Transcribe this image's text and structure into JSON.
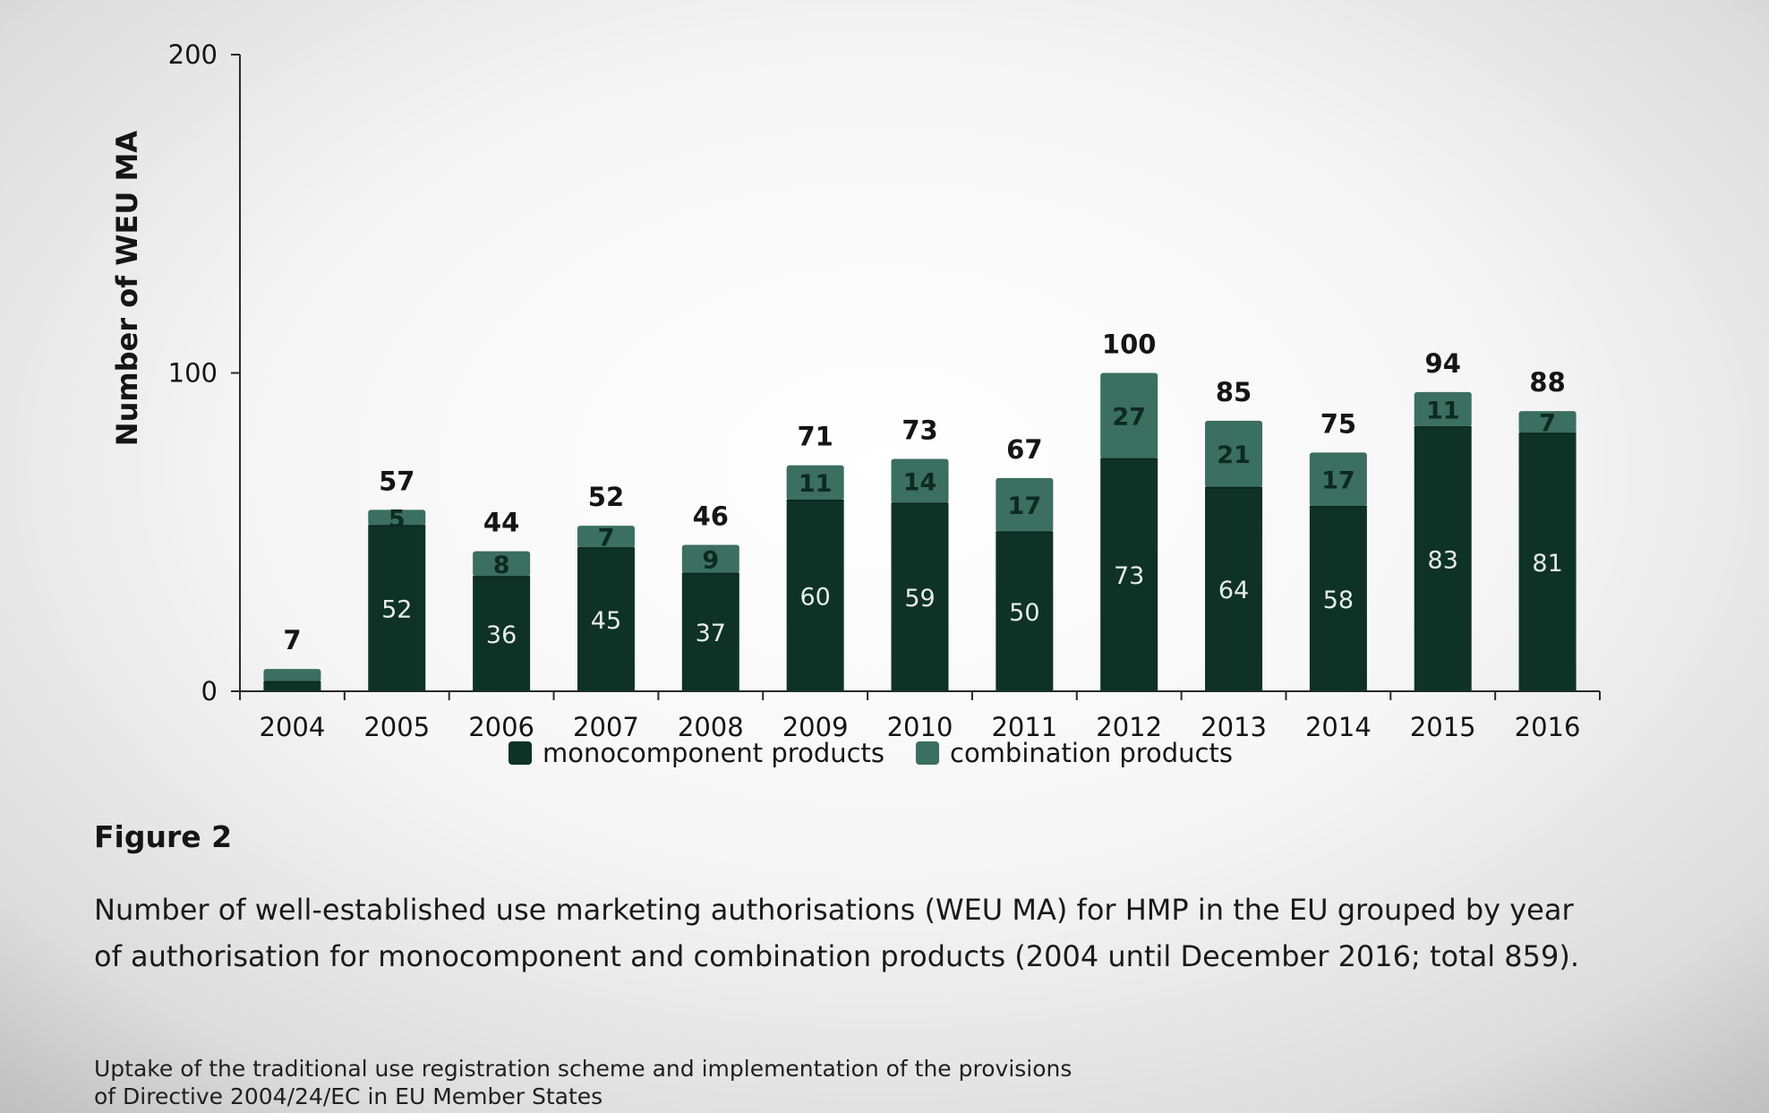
{
  "chart_data": {
    "type": "bar",
    "stacked": true,
    "ylabel": "Number of WEU MA",
    "ylim": [
      0,
      200
    ],
    "yticks": [
      0,
      100,
      200
    ],
    "grid": false,
    "legend_position": "bottom",
    "categories": [
      "2004",
      "2005",
      "2006",
      "2007",
      "2008",
      "2009",
      "2010",
      "2011",
      "2012",
      "2013",
      "2014",
      "2015",
      "2016"
    ],
    "series": [
      {
        "name": "monocomponent products",
        "color": "#0e3226",
        "values": [
          3,
          52,
          36,
          45,
          37,
          60,
          59,
          50,
          73,
          64,
          58,
          83,
          81
        ]
      },
      {
        "name": "combination products",
        "color": "#3b6f5f",
        "values": [
          4,
          5,
          8,
          7,
          9,
          11,
          14,
          17,
          27,
          21,
          17,
          11,
          7
        ]
      }
    ],
    "totals": [
      7,
      57,
      44,
      52,
      46,
      71,
      73,
      67,
      100,
      85,
      75,
      94,
      88
    ]
  },
  "figure": {
    "label": "Figure 2",
    "caption_line1": "Number of well-established use marketing authorisations (WEU MA) for HMP in the EU grouped by year",
    "caption_line2": "of authorisation for monocomponent and combination products (2004 until December 2016; total 859)."
  },
  "footer": {
    "line1": "Uptake of the traditional use registration scheme and implementation of the provisions",
    "line2": "of Directive 2004/24/EC in EU Member States"
  }
}
